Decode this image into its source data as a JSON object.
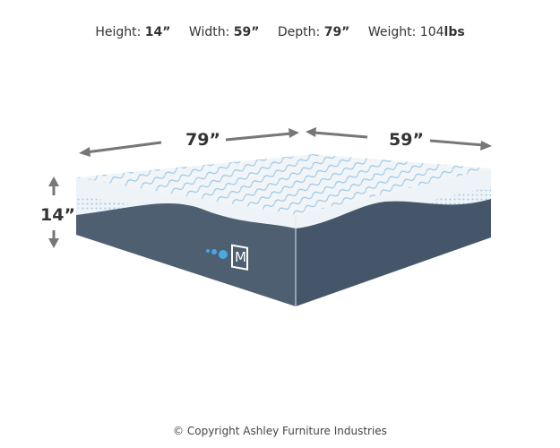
{
  "specs": [
    {
      "label": "Height:",
      "value": "14”"
    },
    {
      "label": "Width:",
      "value": "59”"
    },
    {
      "label": "Depth:",
      "value": "79”"
    },
    {
      "label": "Weight:",
      "value": "104",
      "unit": "lbs"
    }
  ],
  "dimensions": {
    "depth": "79”",
    "width": "59”",
    "height": "14”"
  },
  "logo": "M",
  "colors": {
    "cover": "#f2f5f8",
    "pattern": "#4a9fd8",
    "base": "#4f5f72",
    "arrow": "#777777"
  },
  "copyright": "© Copyright Ashley Furniture Industries"
}
